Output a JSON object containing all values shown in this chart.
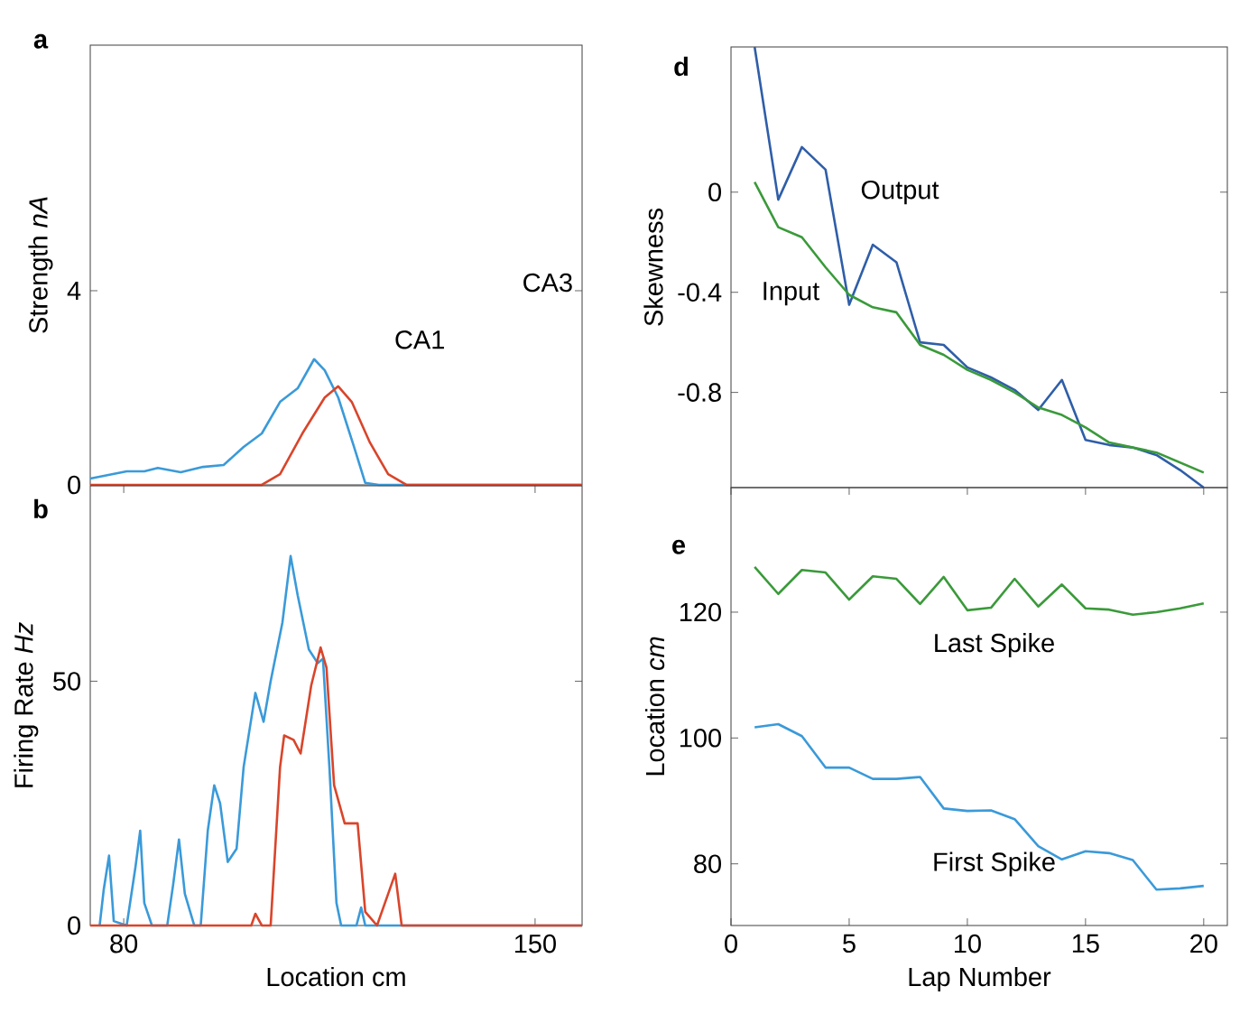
{
  "chart_data": [
    {
      "type": "line",
      "title": "a",
      "ylabel": "Strength  *nA*",
      "xlim": [
        74.3,
        158.0
      ],
      "ylim": [
        0,
        9.06
      ],
      "yticks": [
        0,
        4
      ],
      "tick_labels": "y",
      "annotations": [
        "CA3",
        "CA1"
      ],
      "series": [
        {
          "color": "#3a9ad9",
          "x": [
            74.3,
            80.5,
            83.5,
            85.8,
            89.7,
            93.5,
            97.0,
            100.4,
            103.5,
            106.6,
            109.6,
            112.4,
            114.2,
            116.5,
            119.2,
            121.1,
            123.4,
            158.0
          ],
          "values": [
            0.13,
            0.28,
            0.28,
            0.35,
            0.26,
            0.37,
            0.41,
            0.78,
            1.06,
            1.71,
            1.99,
            2.59,
            2.36,
            1.8,
            0.78,
            0.04,
            0,
            0
          ]
        },
        {
          "color": "#d9452b",
          "x": [
            74.3,
            103.5,
            106.6,
            110.4,
            114.2,
            116.5,
            118.8,
            121.9,
            125.0,
            128.1,
            158.0
          ],
          "values": [
            0,
            0,
            0.22,
            1.06,
            1.8,
            2.03,
            1.71,
            0.87,
            0.22,
            0,
            0
          ]
        }
      ]
    },
    {
      "type": "line",
      "title": "b",
      "xlabel": "Location cm",
      "ylabel": "Firing Rate  *Hz*",
      "xlim": [
        74.3,
        158.0
      ],
      "ylim": [
        0,
        90
      ],
      "xticks": [
        80,
        150
      ],
      "yticks": [
        0,
        50
      ],
      "series": [
        {
          "color": "#3a9ad9",
          "x": [
            75.9,
            76.6,
            77.5,
            78.3,
            80.5,
            82.0,
            82.8,
            83.5,
            84.8,
            87.4,
            88.4,
            89.4,
            90.4,
            92.0,
            93.1,
            94.3,
            95.4,
            96.4,
            97.7,
            99.2,
            100.4,
            102.4,
            103.8,
            105.0,
            107.0,
            108.4,
            109.6,
            111.5,
            113.0,
            113.9,
            115.0,
            116.2,
            117.0,
            119.6,
            120.4,
            121.1,
            158.0
          ],
          "values": [
            0,
            7.4,
            14.3,
            0.9,
            0,
            12.0,
            19.4,
            4.6,
            0,
            0,
            8.3,
            17.6,
            6.5,
            0,
            0,
            19.4,
            28.7,
            25.0,
            13.0,
            15.7,
            32.4,
            47.6,
            41.7,
            50.0,
            62.0,
            75.6,
            67.6,
            56.5,
            53.7,
            54.6,
            32.4,
            4.6,
            0,
            0,
            3.7,
            0,
            0
          ]
        },
        {
          "color": "#d9452b",
          "x": [
            74.3,
            101.7,
            102.4,
            103.5,
            105.0,
            106.6,
            107.3,
            108.9,
            110.1,
            111.9,
            113.5,
            114.5,
            115.8,
            117.6,
            119.8,
            121.1,
            123.1,
            125.0,
            126.2,
            127.3,
            158.0
          ],
          "values": [
            0,
            0,
            2.4,
            0,
            0,
            32.4,
            38.9,
            38.0,
            35.2,
            49.1,
            56.9,
            52.8,
            28.7,
            20.9,
            20.9,
            2.8,
            0,
            6.5,
            10.6,
            0,
            0
          ]
        }
      ]
    },
    {
      "type": "line",
      "title": "d",
      "ylabel": "Skewness",
      "xlim": [
        0,
        21
      ],
      "ylim": [
        -1.18,
        0.58
      ],
      "yticks": [
        0,
        -0.4,
        -0.8
      ],
      "tick_labels": "y",
      "x": [
        1,
        2,
        3,
        4,
        5,
        6,
        7,
        8,
        9,
        10,
        11,
        12,
        13,
        14,
        15,
        16,
        17,
        18,
        19,
        20
      ],
      "series": [
        {
          "name": "Output",
          "color": "#2f5ea8",
          "values": [
            0.58,
            -0.03,
            0.18,
            0.09,
            -0.45,
            -0.21,
            -0.28,
            -0.6,
            -0.61,
            -0.7,
            -0.74,
            -0.79,
            -0.87,
            -0.75,
            -0.99,
            -1.01,
            -1.02,
            -1.05,
            -1.11,
            -1.18
          ]
        },
        {
          "name": "Input",
          "color": "#3a9a3a",
          "values": [
            0.04,
            -0.14,
            -0.18,
            -0.3,
            -0.41,
            -0.46,
            -0.48,
            -0.61,
            -0.65,
            -0.71,
            -0.75,
            -0.8,
            -0.86,
            -0.89,
            -0.94,
            -1.0,
            -1.02,
            -1.04,
            -1.08,
            -1.12
          ]
        }
      ]
    },
    {
      "type": "line",
      "title": "e",
      "xlabel": "Lap Number",
      "ylabel": "Location  *cm*",
      "xlim": [
        0,
        21
      ],
      "ylim": [
        70.2,
        139.8
      ],
      "xticks": [
        0,
        5,
        10,
        15,
        20
      ],
      "yticks": [
        80,
        100,
        120
      ],
      "x": [
        1,
        2,
        3,
        4,
        5,
        6,
        7,
        8,
        9,
        10,
        11,
        12,
        13,
        14,
        15,
        16,
        17,
        18,
        19,
        20
      ],
      "series": [
        {
          "name": "Last Spike",
          "color": "#3a9a3a",
          "values": [
            127.2,
            122.9,
            126.7,
            126.3,
            122.0,
            125.7,
            125.3,
            121.3,
            125.6,
            120.3,
            120.7,
            125.3,
            120.9,
            124.4,
            120.6,
            120.4,
            119.6,
            120.0,
            120.6,
            121.4
          ]
        },
        {
          "name": "First Spike",
          "color": "#3a9ad9",
          "values": [
            101.7,
            102.2,
            100.3,
            95.3,
            95.3,
            93.5,
            93.5,
            93.8,
            88.8,
            88.4,
            88.5,
            87.1,
            82.8,
            80.7,
            82.0,
            81.7,
            80.6,
            75.9,
            76.1,
            76.5
          ]
        }
      ]
    }
  ]
}
